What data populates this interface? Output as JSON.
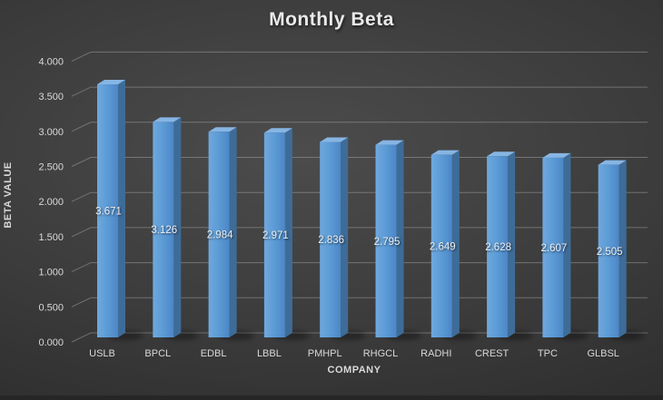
{
  "chart": {
    "title": "Monthly Beta",
    "x_axis_title": "COMPANY",
    "y_axis_title": "BETA VALUE"
  },
  "chart_data": {
    "type": "bar",
    "effect": "3d-column",
    "title": "Monthly Beta",
    "xlabel": "COMPANY",
    "ylabel": "BETA VALUE",
    "categories": [
      "USLB",
      "BPCL",
      "EDBL",
      "LBBL",
      "PMHPL",
      "RHGCL",
      "RADHI",
      "CREST",
      "TPC",
      "GLBSL"
    ],
    "values": [
      3.671,
      3.126,
      2.984,
      2.971,
      2.836,
      2.795,
      2.649,
      2.628,
      2.607,
      2.505
    ],
    "value_labels": [
      "3.671",
      "3.126",
      "2.984",
      "2.971",
      "2.836",
      "2.795",
      "2.649",
      "2.628",
      "2.607",
      "2.505"
    ],
    "ytick_labels": [
      "0.000",
      "0.500",
      "1.000",
      "1.500",
      "2.000",
      "2.500",
      "3.000",
      "3.500",
      "4.000"
    ],
    "ylim": [
      0,
      4.0
    ],
    "ytick_step": 0.5,
    "grid": true,
    "legend": false,
    "data_label_position": "center",
    "colors": {
      "bar_front_light": "#6FA8DE",
      "bar_front_dark": "#4C86C6",
      "bar_top": "#87B5E3",
      "bar_side": "#3E6C98",
      "gridline": "#a6a6a6",
      "axis_text": "#d9d9d9",
      "title_text": "#e9e9e9",
      "background_center": "#4c4c4c",
      "background_edge": "#262626"
    }
  }
}
